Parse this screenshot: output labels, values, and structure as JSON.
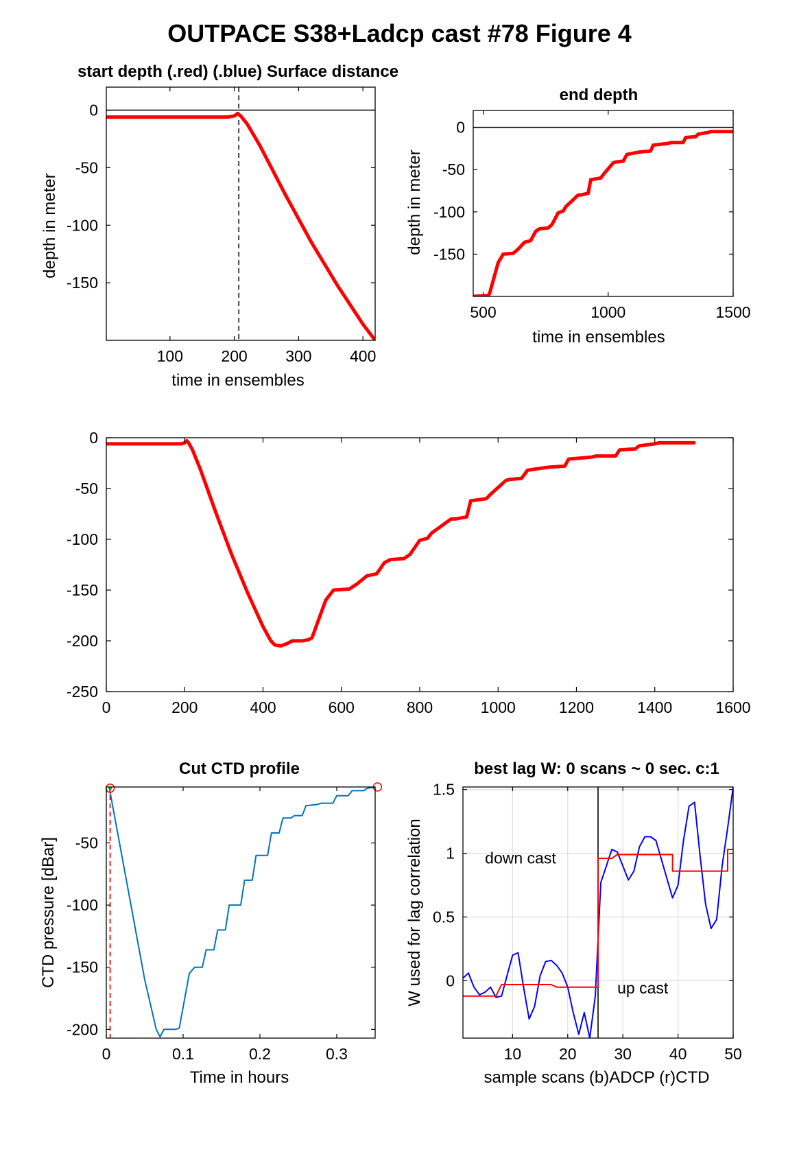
{
  "figure_title": "OUTPACE S38+Ladcp cast #78   Figure 4",
  "colors": {
    "red": "#ff0000",
    "blue": "#0000ff",
    "ctd": "#0072bd",
    "grid": "#dedede",
    "green": "#00aa00"
  },
  "chart_data": [
    {
      "id": "start",
      "type": "line",
      "title": "start depth (.red) (.blue) Surface distance",
      "xlabel": "time in ensembles",
      "ylabel": "depth in meter",
      "xlim": [
        1,
        419
      ],
      "ylim": [
        -200,
        20
      ],
      "xticks": [
        100,
        200,
        300,
        400
      ],
      "yticks": [
        0,
        -50,
        -100,
        -150
      ],
      "grid": false,
      "hline": 0,
      "vline_dashed": 207,
      "series": [
        {
          "color": "red",
          "width": 5,
          "x": [
            1,
            190,
            200,
            205,
            210,
            220,
            240,
            280,
            320,
            360,
            400,
            419
          ],
          "y": [
            -6,
            -6,
            -5,
            -3,
            -5,
            -12,
            -31,
            -74,
            -115,
            -152,
            -186,
            -200
          ]
        }
      ]
    },
    {
      "id": "end",
      "type": "line",
      "title": "end depth",
      "xlabel": "time in ensembles",
      "ylabel": "depth in meter",
      "xlim": [
        460,
        1500
      ],
      "ylim": [
        -200,
        20
      ],
      "xticks": [
        500,
        1000,
        1500
      ],
      "yticks": [
        0,
        -50,
        -100,
        -150
      ],
      "grid": false,
      "hline": 0,
      "series": [
        {
          "color": "red",
          "width": 5,
          "x": [
            460,
            520,
            525,
            560,
            580,
            620,
            640,
            665,
            690,
            710,
            725,
            760,
            775,
            800,
            820,
            830,
            880,
            890,
            920,
            930,
            970,
            980,
            1020,
            1030,
            1060,
            1075,
            1110,
            1130,
            1170,
            1180,
            1240,
            1250,
            1300,
            1310,
            1350,
            1360,
            1400,
            1410,
            1500
          ],
          "y": [
            -200,
            -199,
            -197,
            -160,
            -150,
            -149,
            -144,
            -136,
            -134,
            -123,
            -120,
            -119,
            -115,
            -101,
            -99,
            -94,
            -80,
            -80,
            -78,
            -62,
            -60,
            -56,
            -42,
            -41,
            -40,
            -32,
            -30,
            -29,
            -28,
            -21,
            -19,
            -18,
            -18,
            -12,
            -11,
            -8,
            -6,
            -5,
            -5
          ]
        }
      ]
    },
    {
      "id": "full",
      "type": "line",
      "title": "",
      "xlabel": "",
      "ylabel": "",
      "xlim": [
        0,
        1600
      ],
      "ylim": [
        -250,
        0
      ],
      "xticks": [
        0,
        200,
        400,
        600,
        800,
        1000,
        1200,
        1400,
        1600
      ],
      "yticks": [
        0,
        -50,
        -100,
        -150,
        -200,
        -250
      ],
      "grid": false,
      "series": [
        {
          "color": "red",
          "width": 5,
          "x": [
            1,
            190,
            200,
            205,
            210,
            220,
            240,
            280,
            320,
            360,
            400,
            420,
            430,
            445,
            460,
            475,
            500,
            515,
            525,
            560,
            580,
            620,
            640,
            665,
            690,
            710,
            725,
            760,
            775,
            800,
            820,
            830,
            880,
            890,
            920,
            930,
            970,
            980,
            1020,
            1030,
            1060,
            1075,
            1110,
            1130,
            1170,
            1180,
            1240,
            1250,
            1300,
            1310,
            1350,
            1360,
            1400,
            1410,
            1500
          ],
          "y": [
            -6,
            -6,
            -5,
            -3,
            -5,
            -12,
            -31,
            -74,
            -115,
            -152,
            -186,
            -200,
            -204,
            -205,
            -203,
            -200,
            -200,
            -199,
            -197,
            -160,
            -150,
            -149,
            -144,
            -136,
            -134,
            -123,
            -120,
            -119,
            -115,
            -101,
            -99,
            -94,
            -80,
            -80,
            -78,
            -62,
            -60,
            -56,
            -42,
            -41,
            -40,
            -32,
            -30,
            -29,
            -28,
            -21,
            -19,
            -18,
            -18,
            -12,
            -11,
            -8,
            -6,
            -5,
            -5
          ]
        }
      ]
    },
    {
      "id": "ctd",
      "type": "line",
      "title": "Cut CTD profile",
      "xlabel": "Time in hours",
      "ylabel": "CTD pressure [dBar]",
      "xlim": [
        0,
        0.35
      ],
      "ylim": [
        -207,
        -5
      ],
      "xticks": [
        0,
        0.1,
        0.2,
        0.3
      ],
      "ytick_labels": [
        "0",
        "0.1",
        "0.2",
        "0.3"
      ],
      "yticks": [
        -50,
        -100,
        -150,
        -200
      ],
      "grid": false,
      "cut_lines": [
        0.005,
        0.353
      ],
      "series": [
        {
          "color": "ctd",
          "width": 2,
          "x": [
            0.004,
            0.05,
            0.065,
            0.07,
            0.075,
            0.09,
            0.095,
            0.108,
            0.115,
            0.125,
            0.13,
            0.14,
            0.145,
            0.155,
            0.16,
            0.175,
            0.18,
            0.19,
            0.195,
            0.21,
            0.215,
            0.225,
            0.23,
            0.24,
            0.245,
            0.255,
            0.26,
            0.275,
            0.28,
            0.295,
            0.3,
            0.315,
            0.32,
            0.335,
            0.34,
            0.353
          ],
          "y": [
            -6,
            -160,
            -200,
            -206,
            -200,
            -200,
            -199,
            -155,
            -150,
            -150,
            -136,
            -136,
            -120,
            -120,
            -100,
            -100,
            -80,
            -80,
            -60,
            -60,
            -42,
            -42,
            -30,
            -30,
            -28,
            -28,
            -20,
            -19,
            -18,
            -18,
            -12,
            -12,
            -8,
            -8,
            -6,
            -5
          ]
        }
      ]
    },
    {
      "id": "lag",
      "type": "line",
      "title": "best lag W: 0 scans ~ 0 sec.  c:1",
      "xlabel": "sample scans (b)ADCP (r)CTD",
      "ylabel": "W used for lag correlation",
      "xlim": [
        1,
        50
      ],
      "ylim": [
        -0.45,
        1.52
      ],
      "xticks": [
        10,
        20,
        30,
        40,
        50
      ],
      "yticks": [
        1.5,
        1,
        0.5,
        0
      ],
      "grid": true,
      "vline_solid": 25.5,
      "annotations": [
        {
          "text": "down cast",
          "x": 5,
          "y": 0.92
        },
        {
          "text": "up cast",
          "x": 29,
          "y": -0.1
        }
      ],
      "series": [
        {
          "color": "blue",
          "width": 2,
          "x": [
            1,
            2,
            3,
            4,
            5,
            6,
            7,
            8,
            9,
            10,
            11,
            12,
            13,
            14,
            15,
            16,
            17,
            18,
            19,
            20,
            21,
            22,
            23,
            24,
            25,
            26,
            27,
            28,
            29,
            30,
            31,
            32,
            33,
            34,
            35,
            36,
            37,
            38,
            39,
            40,
            41,
            42,
            43,
            44,
            45,
            46,
            47,
            48,
            49,
            50
          ],
          "y": [
            0.02,
            0.06,
            -0.05,
            -0.11,
            -0.09,
            -0.05,
            -0.13,
            -0.12,
            0.04,
            0.2,
            0.22,
            -0.05,
            -0.3,
            -0.2,
            0.04,
            0.15,
            0.16,
            0.12,
            0.06,
            -0.05,
            -0.25,
            -0.42,
            -0.25,
            -0.45,
            -0.12,
            0.77,
            0.9,
            1.03,
            1.01,
            0.9,
            0.79,
            0.86,
            1.05,
            1.13,
            1.13,
            1.1,
            0.95,
            0.8,
            0.65,
            0.75,
            1.1,
            1.37,
            1.4,
            0.98,
            0.6,
            0.41,
            0.48,
            0.9,
            1.2,
            1.52
          ]
        },
        {
          "color": "red",
          "width": 2,
          "step": [
            [
              1,
              -0.12
            ],
            [
              7,
              -0.12
            ],
            [
              8,
              -0.03
            ],
            [
              17,
              -0.03
            ],
            [
              18,
              -0.05
            ],
            [
              25.5,
              -0.05
            ],
            [
              25.5,
              0.96
            ],
            [
              28,
              0.96
            ],
            [
              29,
              0.99
            ],
            [
              39,
              0.99
            ],
            [
              39,
              0.86
            ],
            [
              49,
              0.86
            ],
            [
              49,
              1.03
            ],
            [
              50,
              1.03
            ]
          ]
        }
      ]
    }
  ]
}
